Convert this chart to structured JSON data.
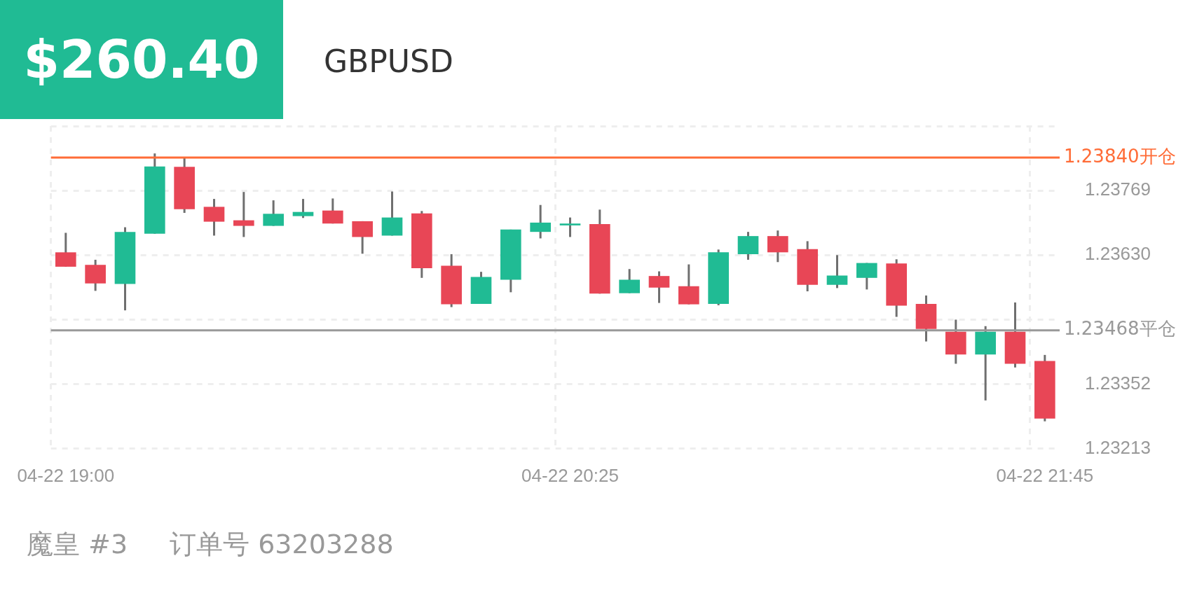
{
  "chart_data": {
    "type": "candlestick",
    "title": "$260.40",
    "subtitle": "GBPUSD",
    "categories": [
      "04-22 19:00",
      null,
      null,
      null,
      null,
      null,
      null,
      null,
      null,
      null,
      null,
      null,
      null,
      null,
      null,
      null,
      null,
      "04-22 20:25",
      null,
      null,
      null,
      null,
      null,
      null,
      null,
      null,
      null,
      null,
      null,
      null,
      null,
      null,
      null,
      "04-22 21:45"
    ],
    "ohlc": [
      [
        1.23636,
        1.23678,
        1.23605,
        1.23605
      ],
      [
        1.23609,
        1.2362,
        1.23553,
        1.23569
      ],
      [
        1.23568,
        1.2369,
        1.23511,
        1.2368
      ],
      [
        1.23676,
        1.23849,
        1.23676,
        1.23821
      ],
      [
        1.2382,
        1.23839,
        1.23721,
        1.23729
      ],
      [
        1.23734,
        1.23751,
        1.23672,
        1.23702
      ],
      [
        1.23705,
        1.23766,
        1.23669,
        1.23693
      ],
      [
        1.23693,
        1.23748,
        1.23693,
        1.23719
      ],
      [
        1.23714,
        1.23751,
        1.2371,
        1.23723
      ],
      [
        1.23726,
        1.23752,
        1.23698,
        1.23698
      ],
      [
        1.23703,
        1.23703,
        1.23633,
        1.23669
      ],
      [
        1.23672,
        1.23767,
        1.23672,
        1.23711
      ],
      [
        1.2372,
        1.23725,
        1.23581,
        1.23602
      ],
      [
        1.23607,
        1.23632,
        1.23518,
        1.23524
      ],
      [
        1.23525,
        1.23594,
        1.23525,
        1.23583
      ],
      [
        1.23577,
        1.23685,
        1.2355,
        1.23685
      ],
      [
        1.2368,
        1.23738,
        1.23666,
        1.237
      ],
      [
        1.23694,
        1.23711,
        1.23669,
        1.23698
      ],
      [
        1.23697,
        1.23728,
        1.23547,
        1.23547
      ],
      [
        1.23548,
        1.236,
        1.23548,
        1.23577
      ],
      [
        1.23585,
        1.23595,
        1.23527,
        1.2356
      ],
      [
        1.23563,
        1.2361,
        1.23524,
        1.23524
      ],
      [
        1.23525,
        1.23642,
        1.23522,
        1.23636
      ],
      [
        1.23632,
        1.2368,
        1.2362,
        1.23671
      ],
      [
        1.23671,
        1.23683,
        1.23615,
        1.23636
      ],
      [
        1.23643,
        1.2366,
        1.23552,
        1.23566
      ],
      [
        1.23566,
        1.2363,
        1.23559,
        1.23586
      ],
      [
        1.23581,
        1.23613,
        1.23556,
        1.23613
      ],
      [
        1.23612,
        1.23621,
        1.23497,
        1.23521
      ],
      [
        1.23525,
        1.23543,
        1.23444,
        1.23471
      ],
      [
        1.23465,
        1.23491,
        1.23396,
        1.23416
      ],
      [
        1.23416,
        1.23477,
        1.23317,
        1.23465
      ],
      [
        1.23465,
        1.23528,
        1.23388,
        1.23396
      ],
      [
        1.23402,
        1.23415,
        1.23272,
        1.23278
      ]
    ],
    "colors": [
      "#e84656",
      "#e84656",
      "#20bb94",
      "#20bb94",
      "#e84656",
      "#e84656",
      "#e84656",
      "#20bb94",
      "#20bb94",
      "#e84656",
      "#e84656",
      "#20bb94",
      "#e84656",
      "#e84656",
      "#20bb94",
      "#20bb94",
      "#20bb94",
      "#20bb94",
      "#e84656",
      "#20bb94",
      "#e84656",
      "#e84656",
      "#20bb94",
      "#20bb94",
      "#e84656",
      "#e84656",
      "#20bb94",
      "#20bb94",
      "#e84656",
      "#e84656",
      "#e84656",
      "#20bb94",
      "#e84656",
      "#e84656"
    ],
    "ylim": [
      1.23213,
      1.23908
    ],
    "yticks": [
      1.23213,
      1.23352,
      {
        "value": 1.23491,
        "label": null
      },
      {
        "value": 1.2363,
        "label": "1.23630"
      },
      1.23769,
      {
        "value": 1.23908,
        "label": null
      }
    ],
    "grid": true,
    "legend": false,
    "ref_lines": [
      {
        "axis": "y",
        "value": 1.2384,
        "label": "1.23840开仓",
        "color": "#ff6c37"
      },
      {
        "axis": "y",
        "value": 1.23468,
        "label": "1.23468平仓",
        "color": "#999999"
      }
    ],
    "annotations": [
      "魔皇 #3",
      "订单号 63203288"
    ]
  }
}
